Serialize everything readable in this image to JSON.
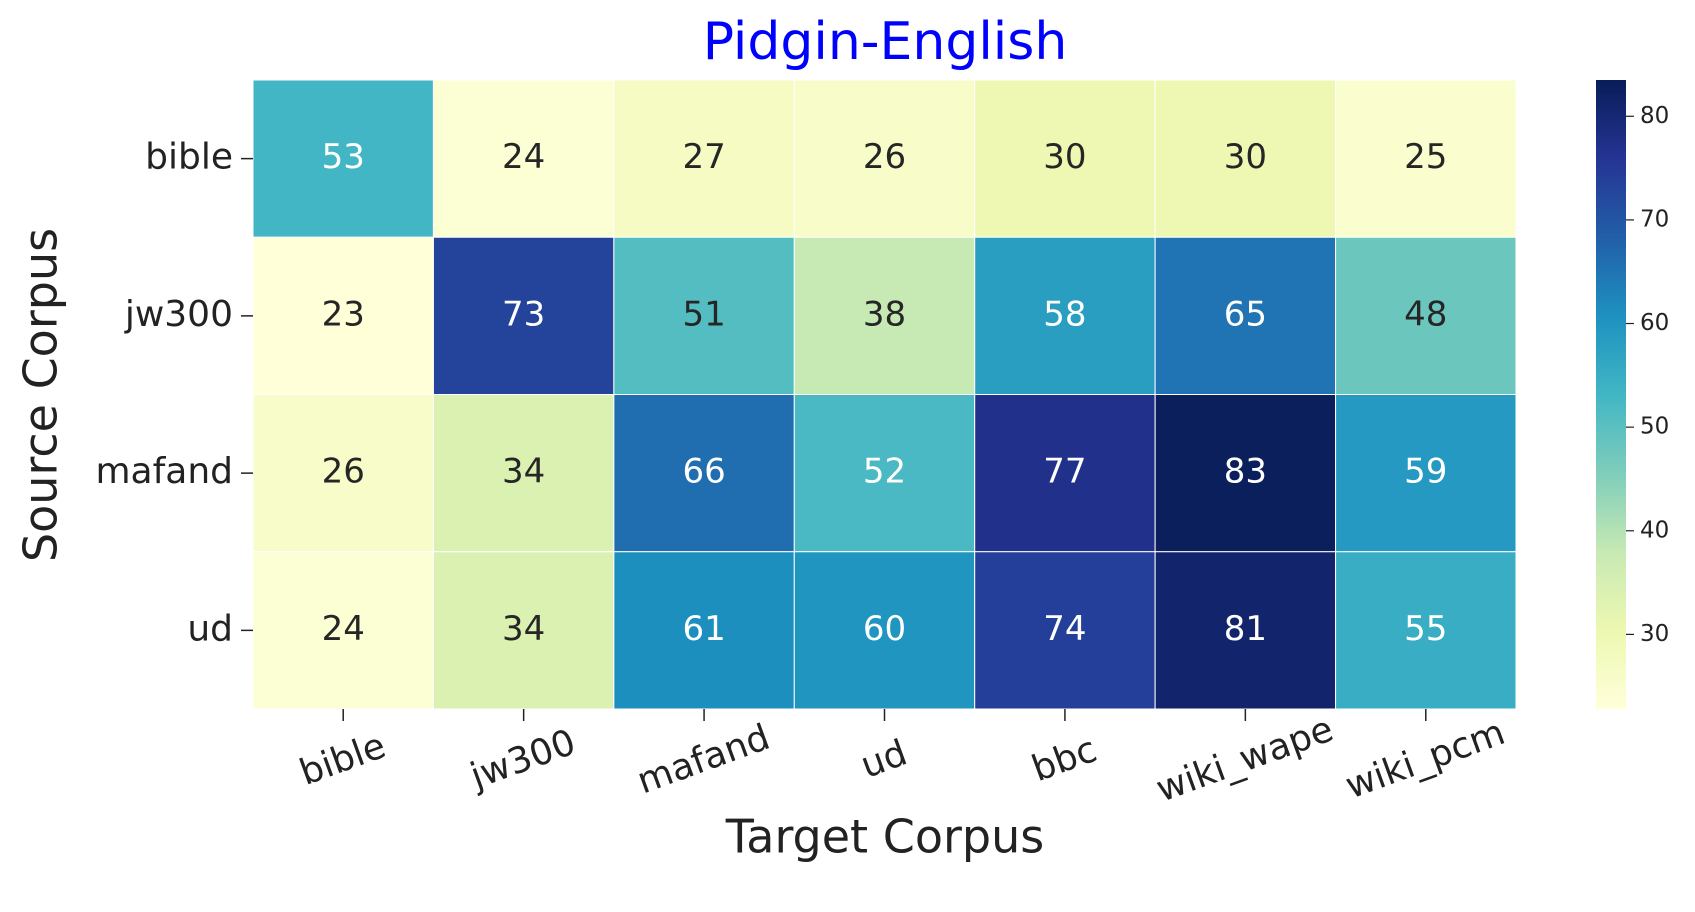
{
  "chart_data": {
    "type": "heatmap",
    "title": "Pidgin-English",
    "x_label": "Target Corpus",
    "y_label": "Source Corpus",
    "x_categories": [
      "bible",
      "jw300",
      "mafand",
      "ud",
      "bbc",
      "wiki_wape",
      "wiki_pcm"
    ],
    "y_categories": [
      "bible",
      "jw300",
      "mafand",
      "ud"
    ],
    "values": [
      [
        53,
        24,
        27,
        26,
        30,
        30,
        25
      ],
      [
        23,
        73,
        51,
        38,
        58,
        65,
        48
      ],
      [
        26,
        34,
        66,
        52,
        77,
        83,
        59
      ],
      [
        24,
        34,
        61,
        60,
        74,
        81,
        55
      ]
    ],
    "colormap": "YlGnBu",
    "clim": [
      22.8,
      83.5
    ],
    "cbar_ticks": [
      30,
      40,
      50,
      60,
      70,
      80
    ]
  }
}
